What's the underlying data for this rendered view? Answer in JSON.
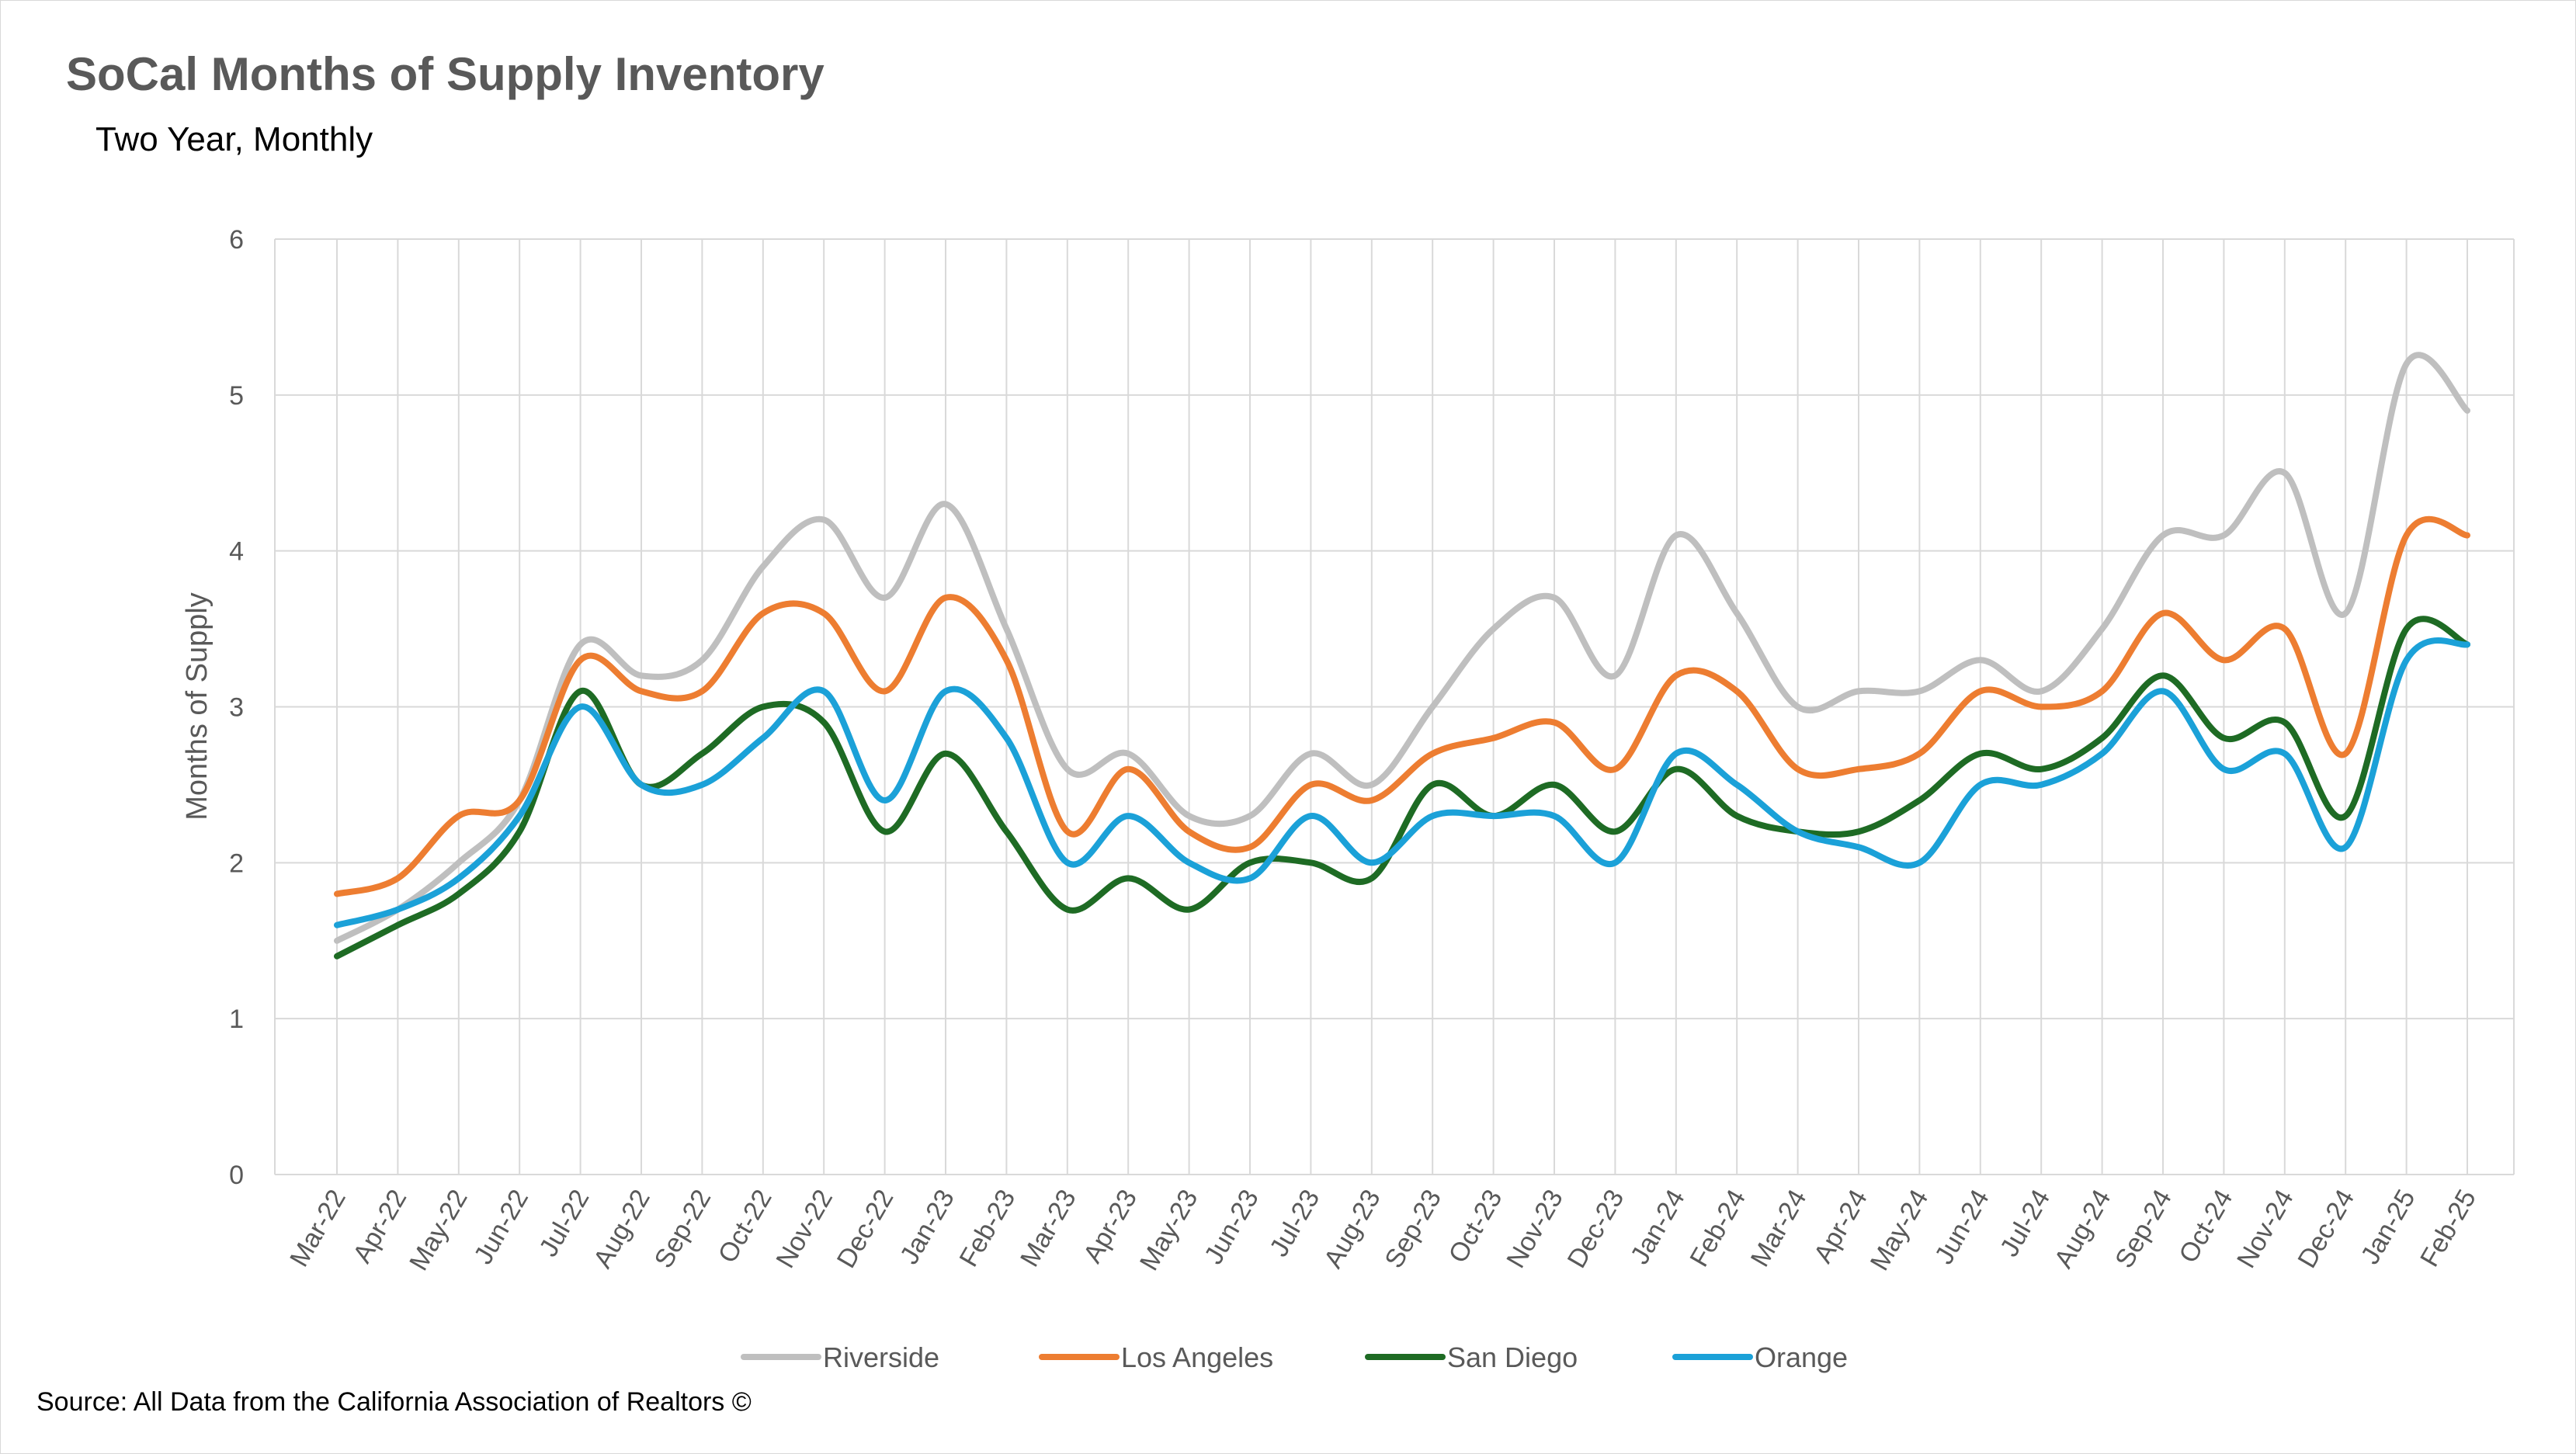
{
  "chart_data": {
    "type": "line",
    "title": "SoCal Months of Supply Inventory",
    "subtitle": "Two Year, Monthly",
    "ylabel": "Months of Supply",
    "xlabel": "",
    "ylim": [
      0,
      6
    ],
    "yticks": [
      "0",
      "1",
      "2",
      "3",
      "4",
      "5",
      "6"
    ],
    "grid": true,
    "legend_position": "bottom",
    "categories": [
      "Mar-22",
      "Apr-22",
      "May-22",
      "Jun-22",
      "Jul-22",
      "Aug-22",
      "Sep-22",
      "Oct-22",
      "Nov-22",
      "Dec-22",
      "Jan-23",
      "Feb-23",
      "Mar-23",
      "Apr-23",
      "May-23",
      "Jun-23",
      "Jul-23",
      "Aug-23",
      "Sep-23",
      "Oct-23",
      "Nov-23",
      "Dec-23",
      "Jan-24",
      "Feb-24",
      "Mar-24",
      "Apr-24",
      "May-24",
      "Jun-24",
      "Jul-24",
      "Aug-24",
      "Sep-24",
      "Oct-24",
      "Nov-24",
      "Dec-24",
      "Jan-25",
      "Feb-25"
    ],
    "series": [
      {
        "name": "Riverside",
        "color": "#bfbfbf",
        "values": [
          1.5,
          1.7,
          2.0,
          2.4,
          3.4,
          3.2,
          3.3,
          3.9,
          4.2,
          3.7,
          4.3,
          3.5,
          2.6,
          2.7,
          2.3,
          2.3,
          2.7,
          2.5,
          3.0,
          3.5,
          3.7,
          3.2,
          4.1,
          3.6,
          3.0,
          3.1,
          3.1,
          3.3,
          3.1,
          3.5,
          4.1,
          4.1,
          4.5,
          3.6,
          5.2,
          4.9
        ]
      },
      {
        "name": "Los Angeles",
        "color": "#ed7d31",
        "values": [
          1.8,
          1.9,
          2.3,
          2.4,
          3.3,
          3.1,
          3.1,
          3.6,
          3.6,
          3.1,
          3.7,
          3.3,
          2.2,
          2.6,
          2.2,
          2.1,
          2.5,
          2.4,
          2.7,
          2.8,
          2.9,
          2.6,
          3.2,
          3.1,
          2.6,
          2.6,
          2.7,
          3.1,
          3.0,
          3.1,
          3.6,
          3.3,
          3.5,
          2.7,
          4.1,
          4.1
        ]
      },
      {
        "name": "San Diego",
        "color": "#1e6b24",
        "values": [
          1.4,
          1.6,
          1.8,
          2.2,
          3.1,
          2.5,
          2.7,
          3.0,
          2.9,
          2.2,
          2.7,
          2.2,
          1.7,
          1.9,
          1.7,
          2.0,
          2.0,
          1.9,
          2.5,
          2.3,
          2.5,
          2.2,
          2.6,
          2.3,
          2.2,
          2.2,
          2.4,
          2.7,
          2.6,
          2.8,
          3.2,
          2.8,
          2.9,
          2.3,
          3.5,
          3.4
        ]
      },
      {
        "name": "Orange",
        "color": "#1ba1d8",
        "values": [
          1.6,
          1.7,
          1.9,
          2.3,
          3.0,
          2.5,
          2.5,
          2.8,
          3.1,
          2.4,
          3.1,
          2.8,
          2.0,
          2.3,
          2.0,
          1.9,
          2.3,
          2.0,
          2.3,
          2.3,
          2.3,
          2.0,
          2.7,
          2.5,
          2.2,
          2.1,
          2.0,
          2.5,
          2.5,
          2.7,
          3.1,
          2.6,
          2.7,
          2.1,
          3.3,
          3.4
        ]
      }
    ],
    "source": "Source: All Data from the California Association of Realtors ©"
  }
}
